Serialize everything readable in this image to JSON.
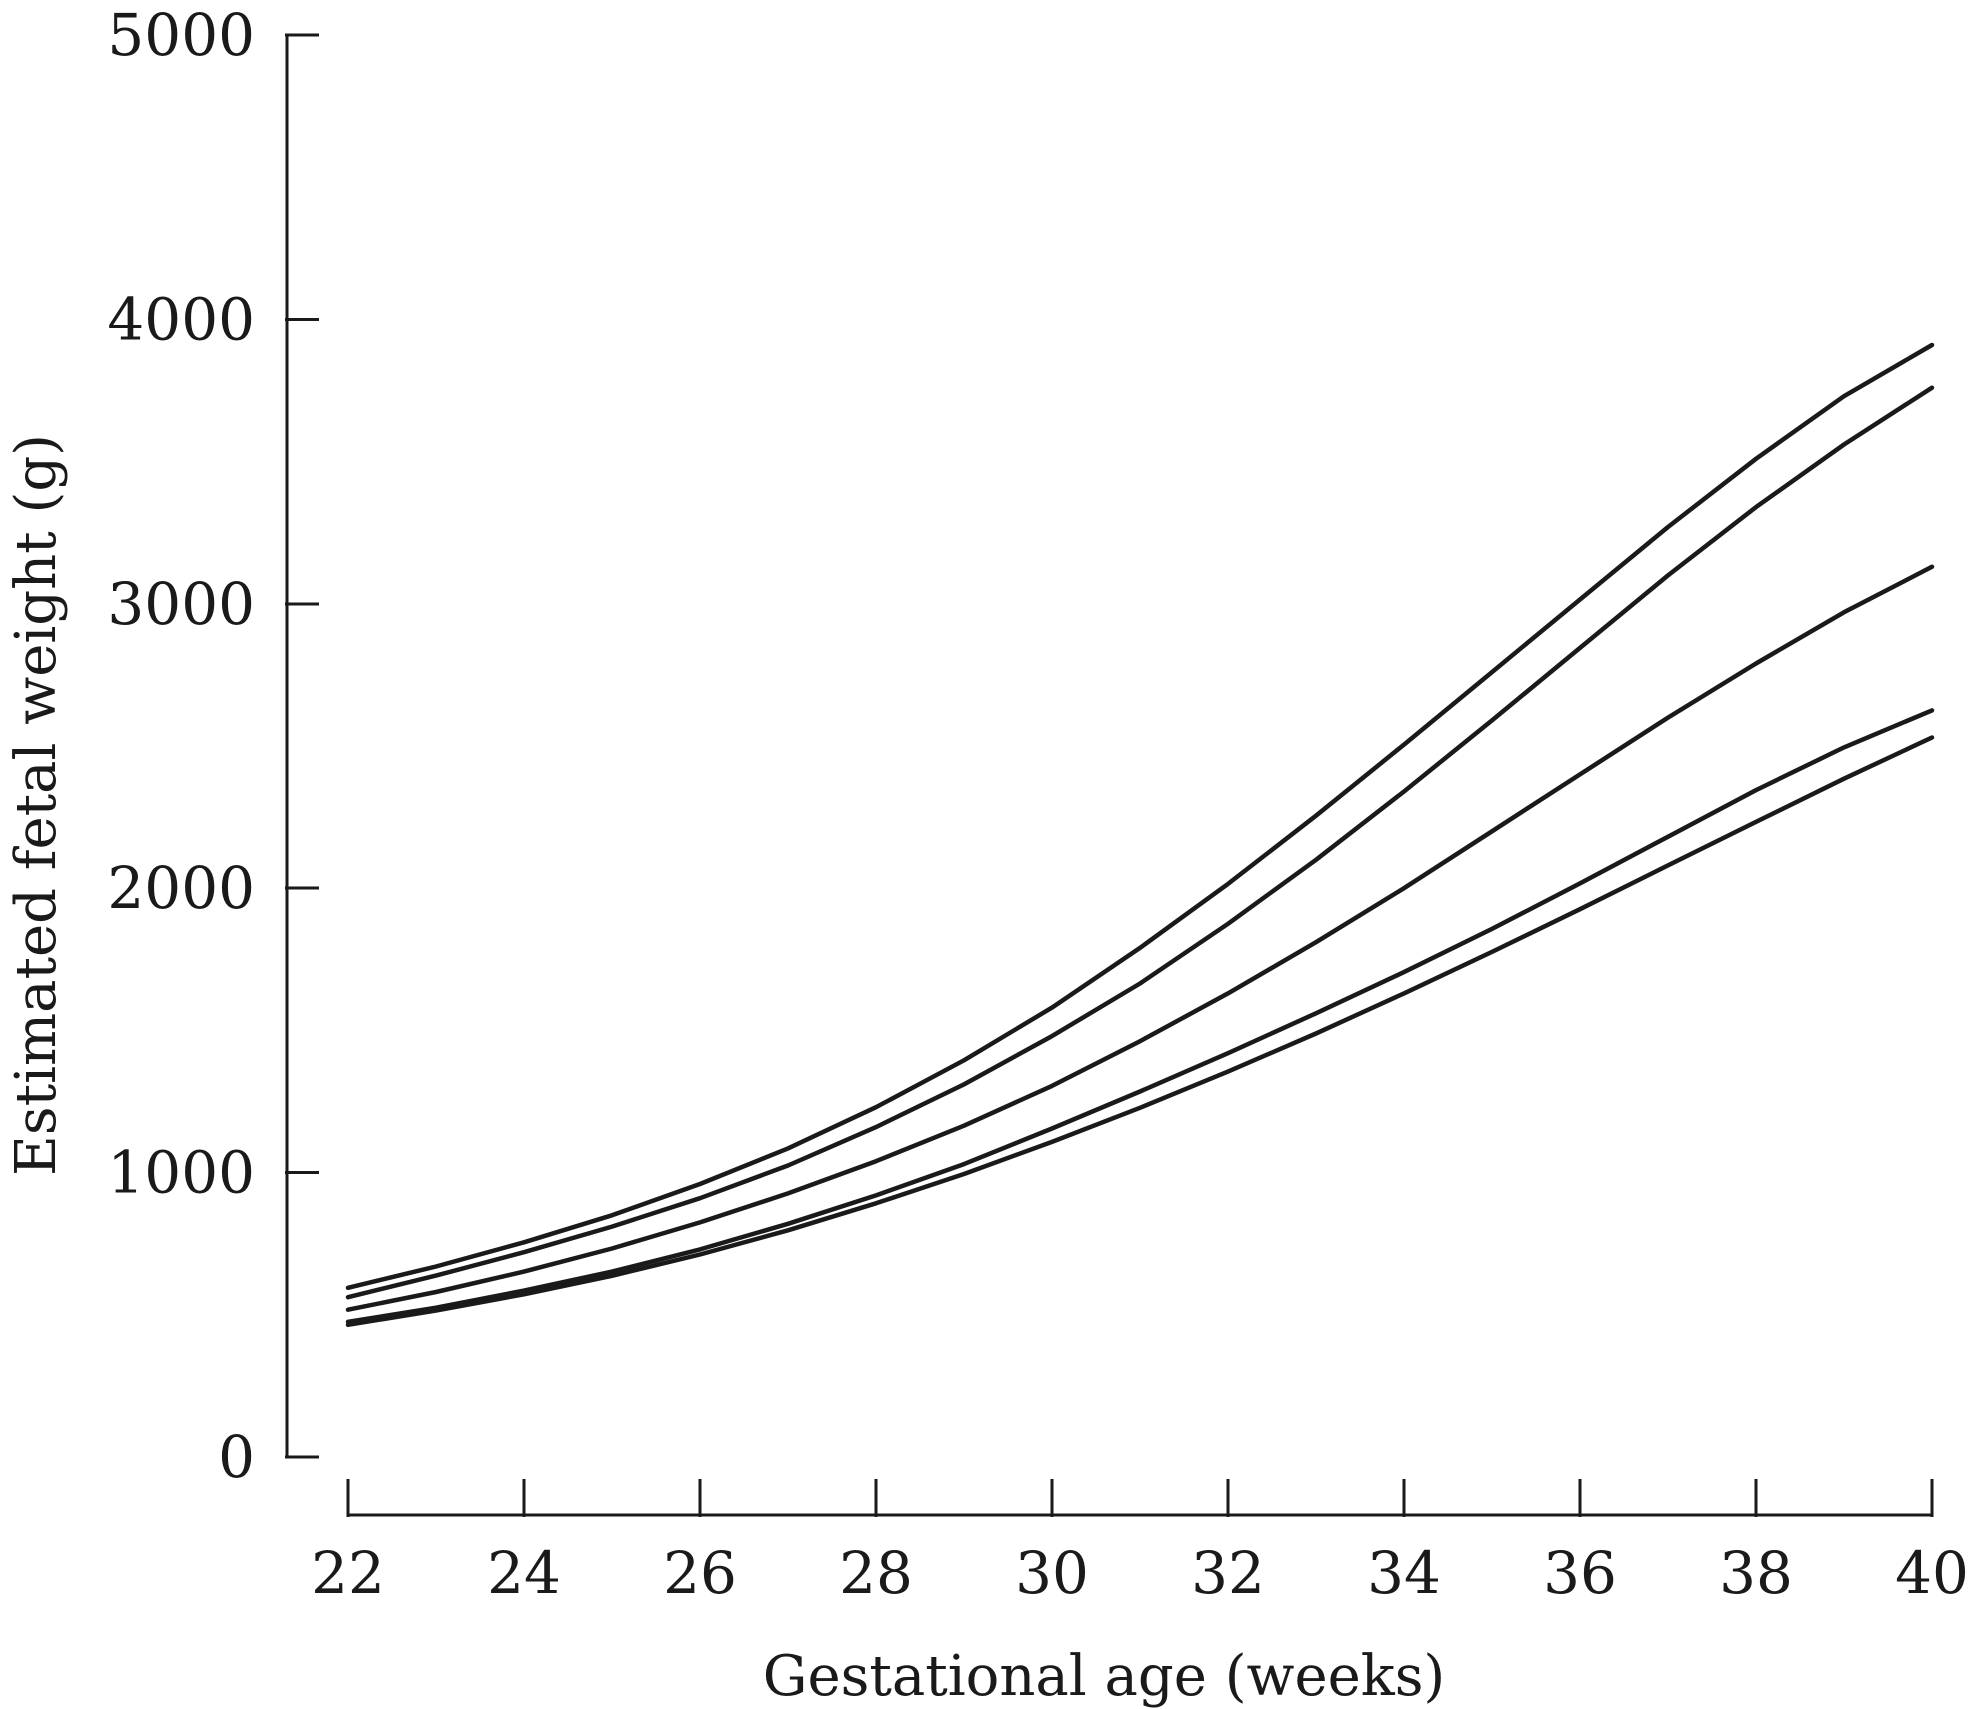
{
  "chart_data": {
    "type": "line",
    "title": "",
    "xlabel": "Gestational age (weeks)",
    "ylabel": "Estimated fetal weight (g)",
    "xlim": [
      22,
      40
    ],
    "ylim": [
      0,
      5000
    ],
    "x_ticks": [
      22,
      24,
      26,
      28,
      30,
      32,
      34,
      36,
      38,
      40
    ],
    "y_ticks": [
      0,
      1000,
      2000,
      3000,
      4000,
      5000
    ],
    "grid": false,
    "legend": "none",
    "line_color": "#1a1a1a",
    "x": [
      22,
      23,
      24,
      25,
      26,
      27,
      28,
      29,
      30,
      31,
      32,
      33,
      34,
      35,
      36,
      37,
      38,
      39,
      40
    ],
    "series": [
      {
        "values": [
          465,
          515,
          572,
          637,
          712,
          797,
          892,
          995,
          1108,
          1228,
          1355,
          1489,
          1630,
          1776,
          1926,
          2080,
          2233,
          2385,
          2530
        ]
      },
      {
        "values": [
          475,
          525,
          585,
          652,
          730,
          820,
          920,
          1030,
          1155,
          1285,
          1420,
          1560,
          1705,
          1857,
          2017,
          2181,
          2345,
          2495,
          2625
        ]
      },
      {
        "values": [
          518,
          580,
          652,
          733,
          825,
          927,
          1040,
          1165,
          1305,
          1462,
          1630,
          1810,
          2000,
          2200,
          2400,
          2600,
          2790,
          2970,
          3130
        ]
      },
      {
        "values": [
          562,
          638,
          720,
          810,
          910,
          1025,
          1160,
          1310,
          1480,
          1665,
          1875,
          2100,
          2340,
          2590,
          2845,
          3100,
          3340,
          3560,
          3760
        ]
      },
      {
        "values": [
          595,
          670,
          755,
          850,
          960,
          1085,
          1230,
          1395,
          1580,
          1790,
          2015,
          2255,
          2505,
          2760,
          3015,
          3270,
          3510,
          3730,
          3910
        ]
      }
    ]
  }
}
